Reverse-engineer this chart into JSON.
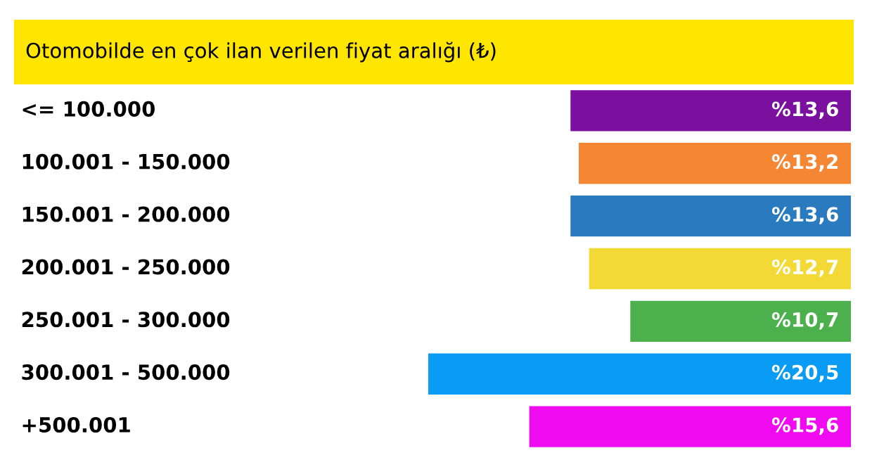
{
  "chart_data": {
    "type": "bar",
    "orientation": "horizontal",
    "title": "Otomobilde en çok ilan verilen fiyat aralığı (₺)",
    "categories": [
      "<= 100.000",
      "100.001 - 150.000",
      "150.001 - 200.000",
      "200.001 - 250.000",
      "250.001 - 300.000",
      "300.001 - 500.000",
      "+500.001"
    ],
    "values": [
      13.6,
      13.2,
      13.6,
      12.7,
      10.7,
      20.5,
      15.6
    ],
    "value_labels": [
      "%13,6",
      "%13,2",
      "%13,6",
      "%12,7",
      "%10,7",
      "%20,5",
      "%15,6"
    ],
    "colors": [
      "#7b0f9e",
      "#f58634",
      "#2a7ac0",
      "#f2d935",
      "#4cb04c",
      "#0a9cf5",
      "#f00af0"
    ],
    "legend": false
  }
}
